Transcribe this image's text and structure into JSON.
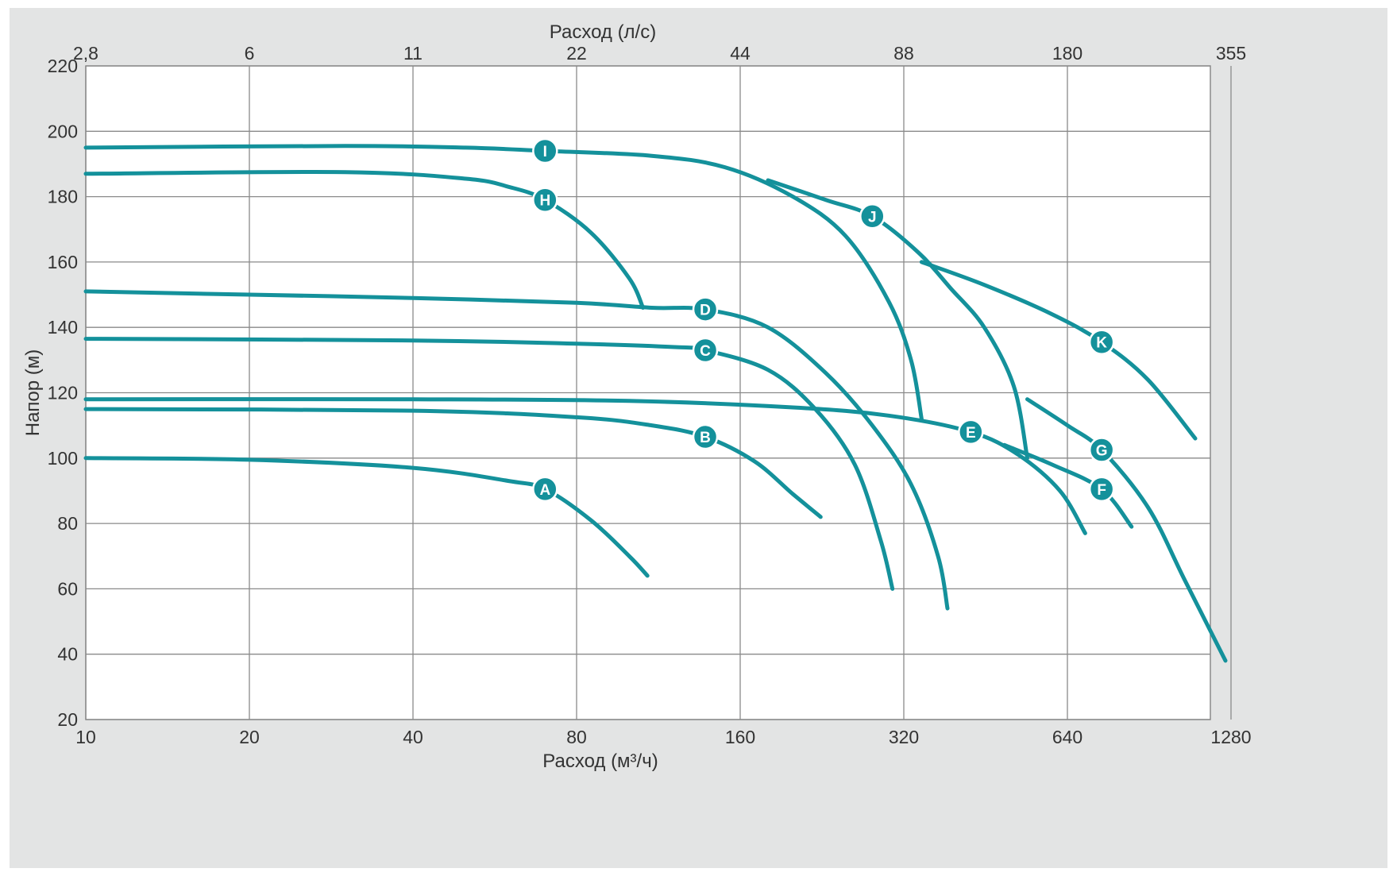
{
  "chart_data": {
    "type": "line",
    "title": "",
    "xlabel": "Расход (м³/ч)",
    "x2label": "Расход (л/с)",
    "ylabel": "Напор (м)",
    "x_scale": "log2",
    "xlim": [
      10,
      2000
    ],
    "ylim": [
      20,
      220
    ],
    "grid": true,
    "x_ticks": [
      "10",
      "20",
      "40",
      "80",
      "160",
      "320",
      "640",
      "1280"
    ],
    "x_tick_values": [
      10,
      20,
      40,
      80,
      160,
      320,
      640,
      1280
    ],
    "x2_ticks": [
      "2,8",
      "6",
      "11",
      "22",
      "44",
      "88",
      "180",
      "355"
    ],
    "x2_tick_values": [
      10,
      20,
      40,
      80,
      160,
      320,
      640,
      1280
    ],
    "y_ticks": [
      "20",
      "40",
      "60",
      "80",
      "100",
      "120",
      "140",
      "160",
      "180",
      "200",
      "220"
    ],
    "y_tick_values": [
      20,
      40,
      60,
      80,
      100,
      120,
      140,
      160,
      180,
      200,
      220
    ],
    "series": [
      {
        "name": "A",
        "label_at": [
          70,
          90.5
        ],
        "points": [
          [
            10,
            100
          ],
          [
            20,
            99.5
          ],
          [
            40,
            97
          ],
          [
            60,
            93
          ],
          [
            70,
            90.5
          ],
          [
            85,
            81
          ],
          [
            100,
            70
          ],
          [
            108,
            64
          ]
        ]
      },
      {
        "name": "B",
        "label_at": [
          138,
          106.5
        ],
        "points": [
          [
            10,
            115
          ],
          [
            40,
            114.5
          ],
          [
            80,
            112.5
          ],
          [
            110,
            110
          ],
          [
            138,
            106.5
          ],
          [
            170,
            99
          ],
          [
            200,
            89
          ],
          [
            225,
            82
          ]
        ]
      },
      {
        "name": "C",
        "label_at": [
          138,
          133
        ],
        "points": [
          [
            10,
            136.5
          ],
          [
            40,
            136
          ],
          [
            80,
            135
          ],
          [
            120,
            134
          ],
          [
            138,
            133
          ],
          [
            180,
            127
          ],
          [
            220,
            115
          ],
          [
            260,
            98
          ],
          [
            290,
            75
          ],
          [
            305,
            60
          ]
        ]
      },
      {
        "name": "D",
        "label_at": [
          138,
          145.5
        ],
        "points": [
          [
            10,
            151
          ],
          [
            20,
            150
          ],
          [
            40,
            149
          ],
          [
            80,
            147.5
          ],
          [
            110,
            146
          ],
          [
            138,
            145.5
          ],
          [
            180,
            140
          ],
          [
            230,
            126
          ],
          [
            280,
            110
          ],
          [
            330,
            92
          ],
          [
            370,
            70
          ],
          [
            385,
            54
          ]
        ]
      },
      {
        "name": "E",
        "label_at": [
          425,
          108
        ],
        "points": [
          [
            10,
            118
          ],
          [
            40,
            118
          ],
          [
            100,
            117.5
          ],
          [
            200,
            115.5
          ],
          [
            300,
            113
          ],
          [
            425,
            108
          ],
          [
            520,
            101
          ],
          [
            620,
            90
          ],
          [
            690,
            77
          ]
        ]
      },
      {
        "name": "F",
        "label_at": [
          740,
          90.5
        ],
        "points": [
          [
            490,
            104
          ],
          [
            600,
            98
          ],
          [
            740,
            90.5
          ],
          [
            840,
            79
          ]
        ]
      },
      {
        "name": "G",
        "label_at": [
          740,
          102.5
        ],
        "points": [
          [
            540,
            118
          ],
          [
            640,
            110
          ],
          [
            740,
            102.5
          ],
          [
            900,
            85
          ],
          [
            1050,
            63
          ],
          [
            1250,
            38
          ]
        ]
      },
      {
        "name": "H",
        "label_at": [
          70,
          179
        ],
        "points": [
          [
            10,
            187
          ],
          [
            30,
            187.5
          ],
          [
            50,
            185.5
          ],
          [
            60,
            183
          ],
          [
            70,
            179
          ],
          [
            85,
            169
          ],
          [
            100,
            155
          ],
          [
            106,
            146
          ]
        ]
      },
      {
        "name": "I",
        "label_at": [
          70,
          194
        ],
        "points": [
          [
            10,
            195
          ],
          [
            30,
            195.5
          ],
          [
            50,
            195
          ],
          [
            70,
            194
          ],
          [
            110,
            192.5
          ],
          [
            150,
            189
          ],
          [
            200,
            180
          ],
          [
            250,
            168
          ],
          [
            300,
            148
          ],
          [
            330,
            130
          ],
          [
            345,
            112
          ]
        ]
      },
      {
        "name": "J",
        "label_at": [
          280,
          174
        ],
        "points": [
          [
            180,
            185
          ],
          [
            230,
            179
          ],
          [
            280,
            174
          ],
          [
            340,
            163
          ],
          [
            390,
            152
          ],
          [
            450,
            140
          ],
          [
            510,
            122
          ],
          [
            540,
            100
          ]
        ]
      },
      {
        "name": "K",
        "label_at": [
          740,
          135.5
        ],
        "points": [
          [
            345,
            160
          ],
          [
            450,
            153
          ],
          [
            600,
            144
          ],
          [
            740,
            135.5
          ],
          [
            900,
            124
          ],
          [
            1100,
            106
          ]
        ]
      }
    ],
    "colors": {
      "curve": "#14919b",
      "marker_fill": "#14919b",
      "marker_text": "#ffffff",
      "grid": "#8a8a8a",
      "plot_background": "#ffffff",
      "background": "#e3e4e4",
      "text": "#333333"
    }
  }
}
